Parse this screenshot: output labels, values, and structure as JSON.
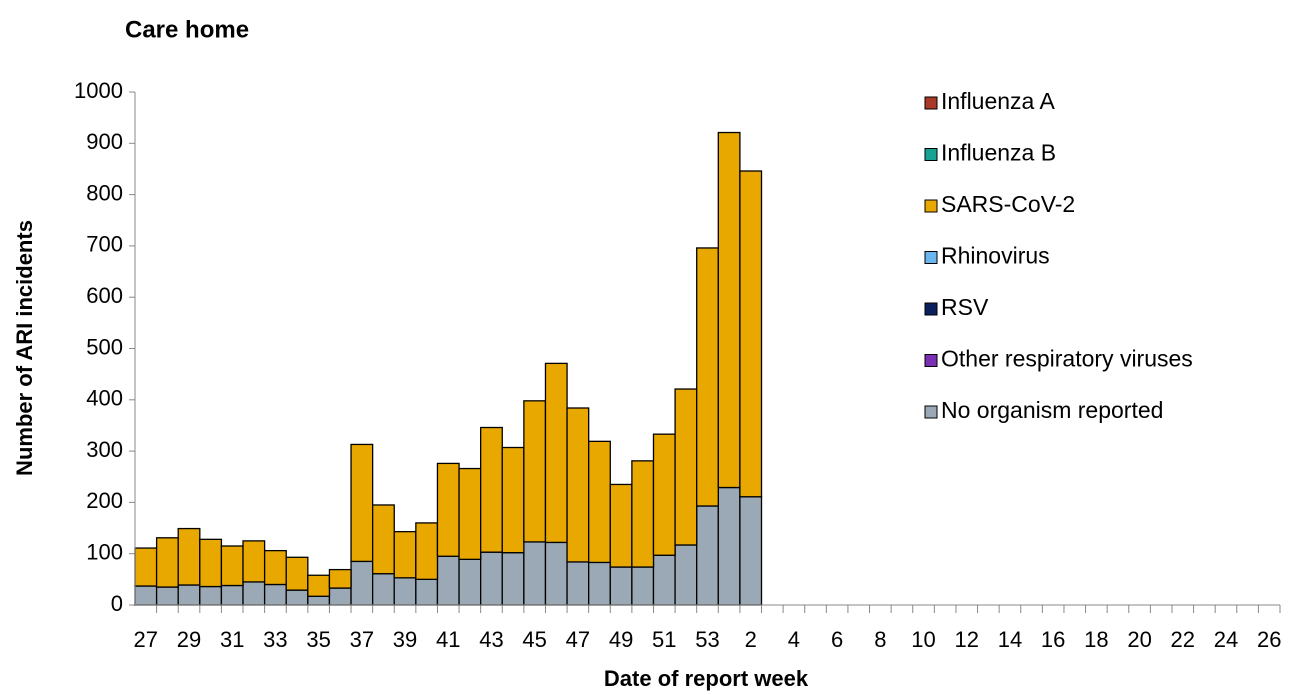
{
  "chart_data": {
    "type": "bar",
    "stacked": true,
    "title": "Care home",
    "x_label": "Date of report week",
    "y_label": "Number of ARI incidents",
    "categories": [
      "27",
      null,
      "29",
      null,
      "31",
      null,
      "33",
      null,
      "35",
      null,
      "37",
      null,
      "39",
      null,
      "41",
      null,
      "43",
      null,
      "45",
      null,
      "47",
      null,
      "49",
      null,
      "51",
      null,
      "53",
      null,
      "2",
      null,
      "4",
      null,
      "6",
      null,
      "8",
      null,
      "10",
      null,
      "12",
      null,
      "14",
      null,
      "16",
      null,
      "18",
      null,
      "20",
      null,
      "22",
      null,
      "24",
      null,
      "26"
    ],
    "series": [
      {
        "name": "Influenza A",
        "color": "#a93a2a",
        "values": [
          0,
          0,
          0,
          0,
          0,
          0,
          0,
          0,
          0,
          0,
          0,
          0,
          0,
          0,
          0,
          0,
          0,
          0,
          0,
          0,
          0,
          0,
          0,
          0,
          0,
          0,
          0,
          0,
          0,
          null,
          null,
          null,
          null,
          null,
          null,
          null,
          null,
          null,
          null,
          null,
          null,
          null,
          null,
          null,
          null,
          null,
          null,
          null,
          null,
          null,
          null,
          null,
          null
        ]
      },
      {
        "name": "Influenza B",
        "color": "#17a394",
        "values": [
          0,
          0,
          0,
          0,
          0,
          0,
          0,
          0,
          0,
          0,
          0,
          0,
          0,
          0,
          0,
          0,
          0,
          0,
          0,
          0,
          0,
          0,
          0,
          0,
          0,
          0,
          0,
          0,
          0,
          null,
          null,
          null,
          null,
          null,
          null,
          null,
          null,
          null,
          null,
          null,
          null,
          null,
          null,
          null,
          null,
          null,
          null,
          null,
          null,
          null,
          null,
          null,
          null
        ]
      },
      {
        "name": "SARS-CoV-2",
        "color": "#e8a800",
        "values": [
          74,
          96,
          110,
          92,
          77,
          80,
          66,
          64,
          41,
          36,
          228,
          134,
          90,
          110,
          181,
          177,
          243,
          205,
          275,
          349,
          300,
          236,
          161,
          207,
          236,
          304,
          503,
          692,
          635,
          null,
          null,
          null,
          null,
          null,
          null,
          null,
          null,
          null,
          null,
          null,
          null,
          null,
          null,
          null,
          null,
          null,
          null,
          null,
          null,
          null,
          null,
          null,
          null
        ]
      },
      {
        "name": "Rhinovirus",
        "color": "#6cb6f0",
        "values": [
          0,
          0,
          0,
          0,
          0,
          0,
          0,
          0,
          0,
          0,
          0,
          0,
          0,
          0,
          0,
          0,
          0,
          0,
          0,
          0,
          0,
          0,
          0,
          0,
          0,
          0,
          0,
          0,
          0,
          null,
          null,
          null,
          null,
          null,
          null,
          null,
          null,
          null,
          null,
          null,
          null,
          null,
          null,
          null,
          null,
          null,
          null,
          null,
          null,
          null,
          null,
          null,
          null
        ]
      },
      {
        "name": "RSV",
        "color": "#0b1f5c",
        "values": [
          0,
          0,
          0,
          0,
          0,
          0,
          0,
          0,
          0,
          0,
          0,
          0,
          0,
          0,
          0,
          0,
          0,
          0,
          0,
          0,
          0,
          0,
          0,
          0,
          0,
          0,
          0,
          0,
          0,
          null,
          null,
          null,
          null,
          null,
          null,
          null,
          null,
          null,
          null,
          null,
          null,
          null,
          null,
          null,
          null,
          null,
          null,
          null,
          null,
          null,
          null,
          null,
          null
        ]
      },
      {
        "name": "Other respiratory viruses",
        "color": "#7b2fb3",
        "values": [
          0,
          0,
          0,
          0,
          0,
          0,
          0,
          0,
          0,
          0,
          0,
          0,
          0,
          0,
          0,
          0,
          0,
          0,
          0,
          0,
          0,
          0,
          0,
          0,
          0,
          0,
          0,
          0,
          0,
          null,
          null,
          null,
          null,
          null,
          null,
          null,
          null,
          null,
          null,
          null,
          null,
          null,
          null,
          null,
          null,
          null,
          null,
          null,
          null,
          null,
          null,
          null,
          null
        ]
      },
      {
        "name": "No organism reported",
        "color": "#9aa9b5",
        "values": [
          37,
          35,
          39,
          36,
          38,
          45,
          40,
          29,
          17,
          33,
          85,
          61,
          53,
          50,
          95,
          89,
          103,
          102,
          123,
          122,
          84,
          83,
          74,
          74,
          97,
          117,
          193,
          229,
          211,
          null,
          null,
          null,
          null,
          null,
          null,
          null,
          null,
          null,
          null,
          null,
          null,
          null,
          null,
          null,
          null,
          null,
          null,
          null,
          null,
          null,
          null,
          null,
          null
        ]
      }
    ],
    "ylim": [
      0,
      1000
    ],
    "yticks": [
      0,
      100,
      200,
      300,
      400,
      500,
      600,
      700,
      800,
      900,
      1000
    ],
    "grid": false,
    "legend": "right"
  }
}
